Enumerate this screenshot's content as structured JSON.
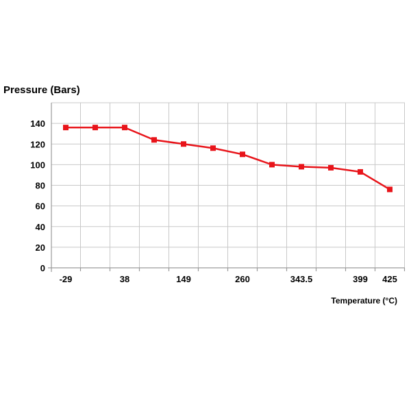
{
  "chart_data": {
    "type": "line",
    "ylabel": "Pressure (Bars)",
    "xlabel": "Temperature (°C)",
    "ylim": [
      0,
      160
    ],
    "yticks": [
      "0",
      "20",
      "40",
      "60",
      "80",
      "100",
      "120",
      "140"
    ],
    "ytick_values": [
      0,
      20,
      40,
      60,
      80,
      100,
      120,
      140
    ],
    "xtick_labels": [
      "-29",
      "38",
      "149",
      "260",
      "343.5",
      "399",
      "425"
    ],
    "xtick_point_index": [
      0,
      2,
      4,
      6,
      8,
      10,
      11
    ],
    "grid": true,
    "series": [
      {
        "color": "#e8141a",
        "values": [
          136,
          136,
          136,
          124,
          120,
          116,
          110,
          100,
          98,
          97,
          93,
          76
        ]
      }
    ]
  }
}
